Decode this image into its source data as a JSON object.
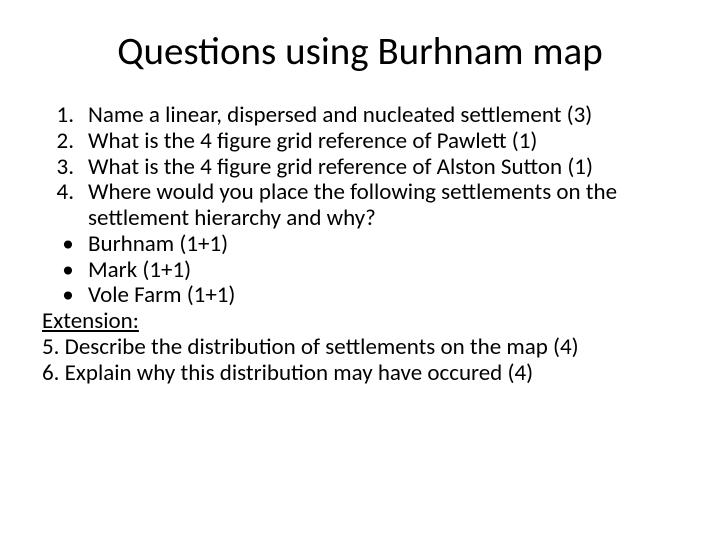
{
  "title": "Questions using Burhnam map",
  "items": {
    "q1_num": "1.",
    "q1_text": "Name a linear, dispersed and nucleated settlement (3)",
    "q2_num": "2.",
    "q2_text": "What is the 4 figure grid reference of Pawlett (1)",
    "q3_num": "3.",
    "q3_text": "What is the 4 figure grid reference of Alston Sutton (1)",
    "q4_num": "4.",
    "q4_text": "Where would you place the following settlements on the settlement hierarchy and why?",
    "b1_mark": "•",
    "b1_text": "Burhnam (1+1)",
    "b2_mark": "•",
    "b2_text": "Mark (1+1)",
    "b3_mark": "•",
    "b3_text": "Vole Farm (1+1)",
    "ext_label": "Extension:",
    "q5_text": "5. Describe the distribution of settlements on the map (4)",
    "q6_text": "6. Explain why this distribution may have occured (4)"
  },
  "style": {
    "background_color": "#ffffff",
    "text_color": "#000000",
    "title_fontsize": 39,
    "body_fontsize": 23,
    "font_family": "Calibri"
  }
}
